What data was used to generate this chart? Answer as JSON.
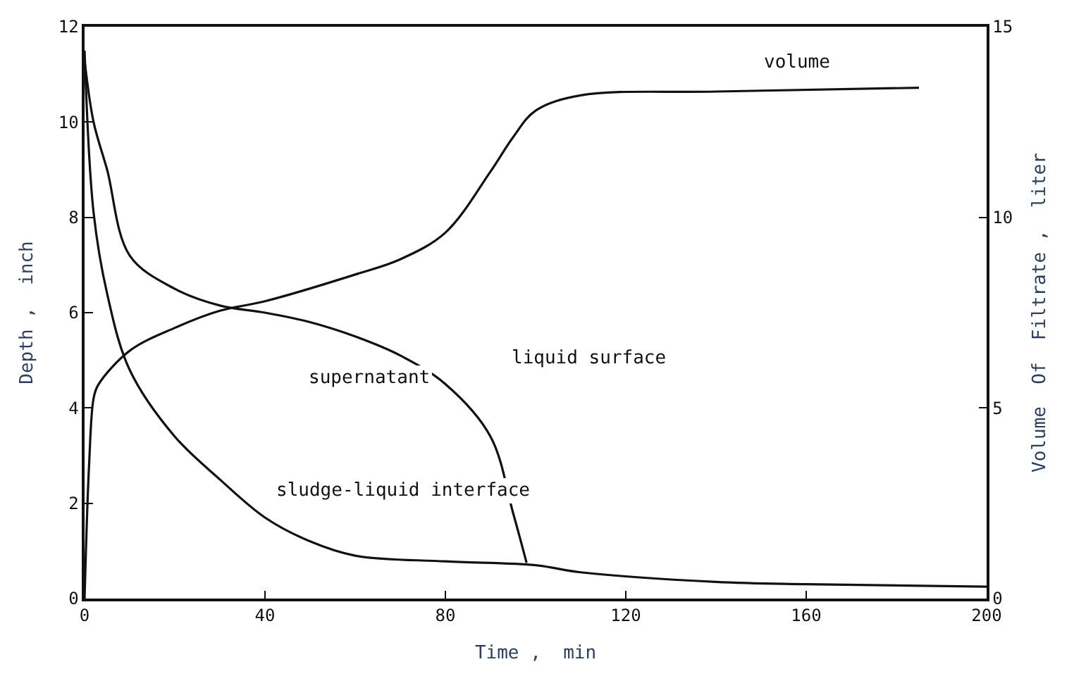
{
  "chart_data": {
    "type": "line",
    "xlabel": "Time ,  min",
    "ylabel": "Depth ,  inch",
    "y2label": "Volume  Of  Filtrate ,  liter",
    "xlim": [
      0,
      200
    ],
    "xticks": [
      0,
      40,
      80,
      120,
      160,
      200
    ],
    "ylim": [
      0,
      12
    ],
    "yticks": [
      0,
      2,
      4,
      6,
      8,
      10,
      12
    ],
    "y2lim": [
      0,
      15
    ],
    "y2ticks": [
      0,
      5,
      10,
      15
    ],
    "marker": "none",
    "line_style": "solid",
    "series": [
      {
        "color": "#111111",
        "x": [
          0,
          2,
          5,
          10,
          20,
          30,
          40,
          50,
          60,
          70,
          80,
          90,
          95,
          98
        ],
        "values": [
          11.3,
          10,
          9,
          7.2,
          6.5,
          6.15,
          6.0,
          5.8,
          5.5,
          5.1,
          4.5,
          3.4,
          1.8,
          0.75
        ]
      },
      {
        "color": "#111111",
        "x": [
          0,
          2,
          5,
          10,
          20,
          30,
          40,
          50,
          60,
          80,
          100,
          110,
          140,
          160,
          200
        ],
        "values": [
          11.5,
          8.1,
          6.4,
          4.8,
          3.4,
          2.5,
          1.7,
          1.2,
          0.9,
          0.78,
          0.7,
          0.55,
          0.35,
          0.3,
          0.25
        ]
      },
      {
        "color": "#111111",
        "axis": "y2",
        "x": [
          0,
          1,
          2,
          3,
          10,
          20,
          30,
          40,
          60,
          70,
          80,
          90,
          95,
          100,
          110,
          140,
          185
        ],
        "values": [
          0,
          3.5,
          5.25,
          5.6,
          6.5,
          7.1,
          7.55,
          7.8,
          8.5,
          8.9,
          9.6,
          11.2,
          12.1,
          12.8,
          13.2,
          13.3,
          13.4
        ]
      }
    ],
    "annotations": [
      "volume",
      "liquid surface",
      "supernatant",
      "sludge-liquid interface"
    ]
  }
}
